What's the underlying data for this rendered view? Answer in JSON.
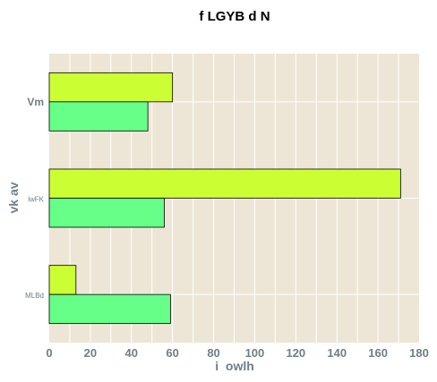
{
  "chart_data": {
    "type": "bar",
    "orientation": "horizontal",
    "title": "f LGYB d N",
    "xlabel": "i  owlh",
    "ylabel": "vk av",
    "categories": [
      "Vm",
      "lwFK",
      "MLBd"
    ],
    "series": [
      {
        "color": "#ccff33",
        "values": [
          60,
          171,
          13
        ]
      },
      {
        "color": "#66ff88",
        "values": [
          48,
          56,
          59
        ]
      }
    ],
    "xlim": [
      0,
      180
    ],
    "xticks": [
      "0",
      "20",
      "40",
      "60",
      "80",
      "100",
      "120",
      "140",
      "160",
      "180"
    ],
    "grid": true,
    "legend": "none",
    "colors": {
      "plot_bg": "#ede6d6",
      "grid": "#ffffff",
      "tick_text": "#6e7f86",
      "bar_edge": "#000000"
    }
  }
}
